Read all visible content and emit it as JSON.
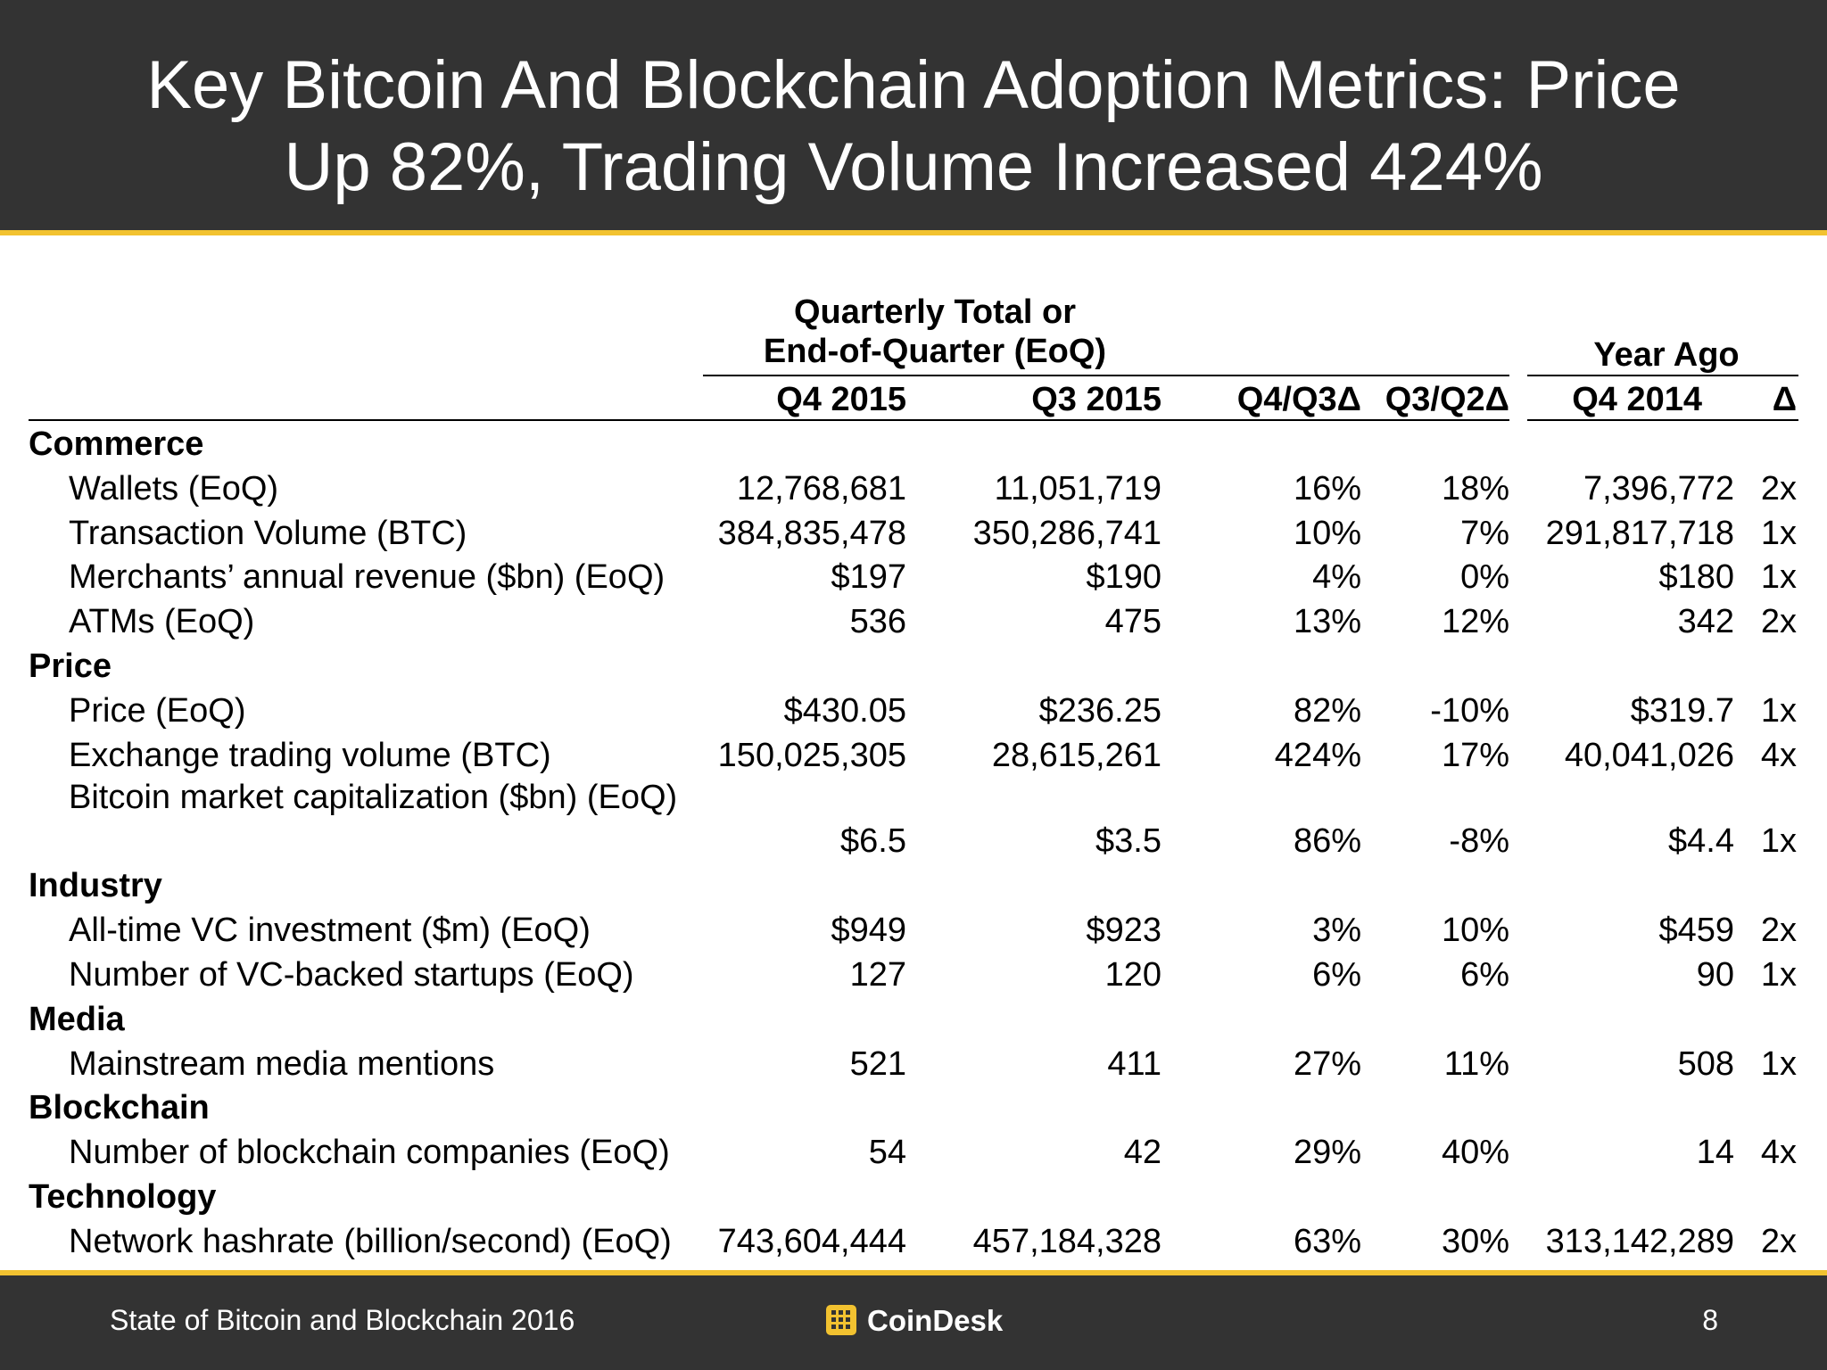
{
  "header": {
    "title_line1": "Key Bitcoin And Blockchain Adoption Metrics: Price",
    "title_line2": "Up 82%, Trading Volume Increased 424%"
  },
  "table": {
    "group_quarterly_line1": "Quarterly Total or",
    "group_quarterly_line2": "End-of-Quarter (EoQ)",
    "group_year_ago": "Year Ago",
    "columns": [
      "Q4 2015",
      "Q3 2015",
      "Q4/Q3Δ",
      "Q3/Q2Δ",
      "Q4 2014",
      "Δ"
    ],
    "rows": [
      {
        "section": "Commerce"
      },
      {
        "label": "Wallets (EoQ)",
        "values": [
          "12,768,681",
          "11,051,719",
          "16%",
          "18%",
          "7,396,772",
          "2x"
        ]
      },
      {
        "label": "Transaction Volume (BTC)",
        "values": [
          "384,835,478",
          "350,286,741",
          "10%",
          "7%",
          "291,817,718",
          "1x"
        ]
      },
      {
        "label": "Merchants’ annual revenue ($bn) (EoQ)",
        "values": [
          "$197",
          "$190",
          "4%",
          "0%",
          "$180",
          "1x"
        ]
      },
      {
        "label": "ATMs (EoQ)",
        "values": [
          "536",
          "475",
          "13%",
          "12%",
          "342",
          "2x"
        ]
      },
      {
        "section": "Price"
      },
      {
        "label": "Price (EoQ)",
        "values": [
          "$430.05",
          "$236.25",
          "82%",
          "-10%",
          "$319.7",
          "1x"
        ]
      },
      {
        "label": "Exchange trading volume (BTC)",
        "values": [
          "150,025,305",
          "28,615,261",
          "424%",
          "17%",
          "40,041,026",
          "4x"
        ]
      },
      {
        "label": "Bitcoin market capitalization ($bn) (EoQ)",
        "values": [
          "$6.5",
          "$3.5",
          "86%",
          "-8%",
          "$4.4",
          "1x"
        ],
        "tall": true
      },
      {
        "section": "Industry"
      },
      {
        "label": "All-time VC investment ($m) (EoQ)",
        "values": [
          "$949",
          "$923",
          "3%",
          "10%",
          "$459",
          "2x"
        ]
      },
      {
        "label": "Number of VC-backed startups (EoQ)",
        "values": [
          "127",
          "120",
          "6%",
          "6%",
          "90",
          "1x"
        ]
      },
      {
        "section": "Media"
      },
      {
        "label": "Mainstream media mentions",
        "values": [
          "521",
          "411",
          "27%",
          "11%",
          "508",
          "1x"
        ]
      },
      {
        "section": "Blockchain"
      },
      {
        "label": "Number of blockchain companies (EoQ)",
        "values": [
          "54",
          "42",
          "29%",
          "40%",
          "14",
          "4x"
        ]
      },
      {
        "section": "Technology"
      },
      {
        "label": "Network hashrate (billion/second) (EoQ)",
        "values": [
          "743,604,444",
          "457,184,328",
          "63%",
          "30%",
          "313,142,289",
          "2x"
        ]
      }
    ]
  },
  "footer": {
    "left_text": "State of Bitcoin and Blockchain 2016",
    "logo_text": "CoinDesk",
    "logo_icon": "coindesk-grid-icon",
    "page_number": "8"
  },
  "colors": {
    "bar_bg": "#333333",
    "accent": "#f2c230",
    "text": "#000000"
  }
}
